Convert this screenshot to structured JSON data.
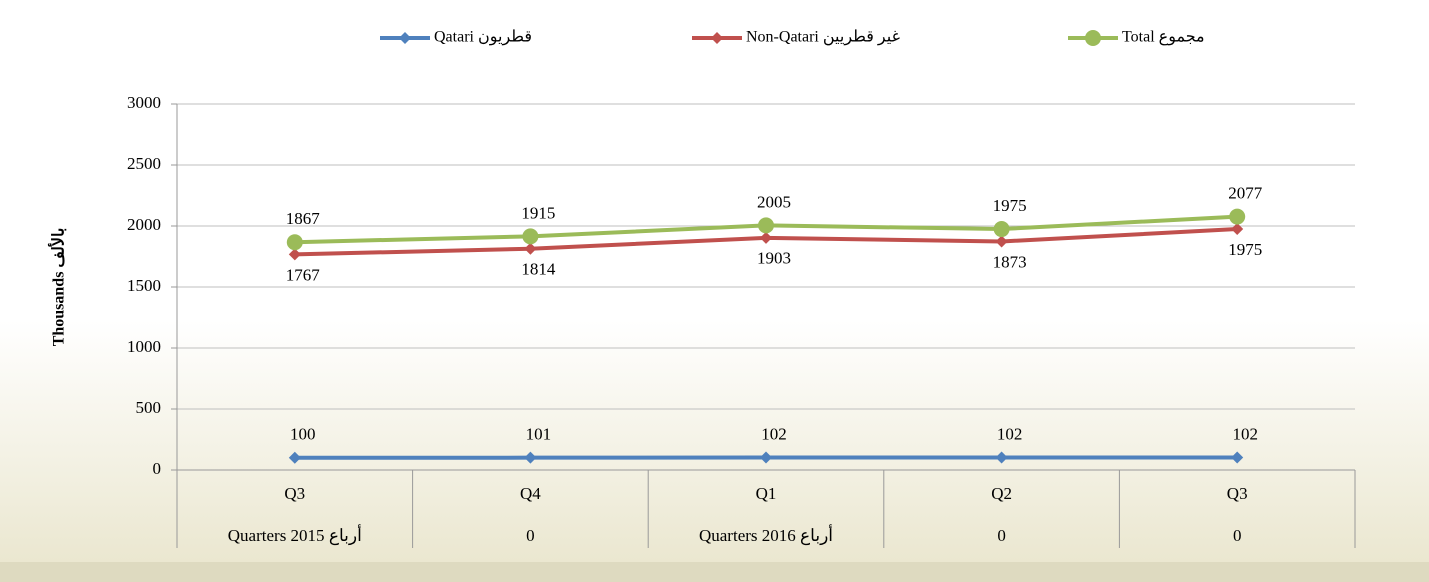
{
  "chart_data": {
    "type": "line",
    "y_axis_label": "Thousands بالألف",
    "categories": [
      "Q3",
      "Q4",
      "Q1",
      "Q2",
      "Q3"
    ],
    "category_groups": [
      "Quarters 2015 أرباع",
      "0",
      "Quarters 2016 أرباع",
      "0",
      "0"
    ],
    "series": [
      {
        "name": "Qatari قطريون",
        "color": "#4f81bd",
        "marker": "diamond",
        "values": [
          100,
          101,
          102,
          102,
          102
        ]
      },
      {
        "name": "Non-Qatari غير قطريين",
        "color": "#c0504d",
        "marker": "diamond",
        "values": [
          1767,
          1814,
          1903,
          1873,
          1975
        ]
      },
      {
        "name": "Total مجموع",
        "color": "#9bbb59",
        "marker": "circle",
        "values": [
          1867,
          1915,
          2005,
          1975,
          2077
        ]
      }
    ],
    "ylim": [
      0,
      3000
    ],
    "yticks": [
      0,
      500,
      1000,
      1500,
      2000,
      2500,
      3000
    ],
    "grid": true,
    "legend": "top"
  }
}
